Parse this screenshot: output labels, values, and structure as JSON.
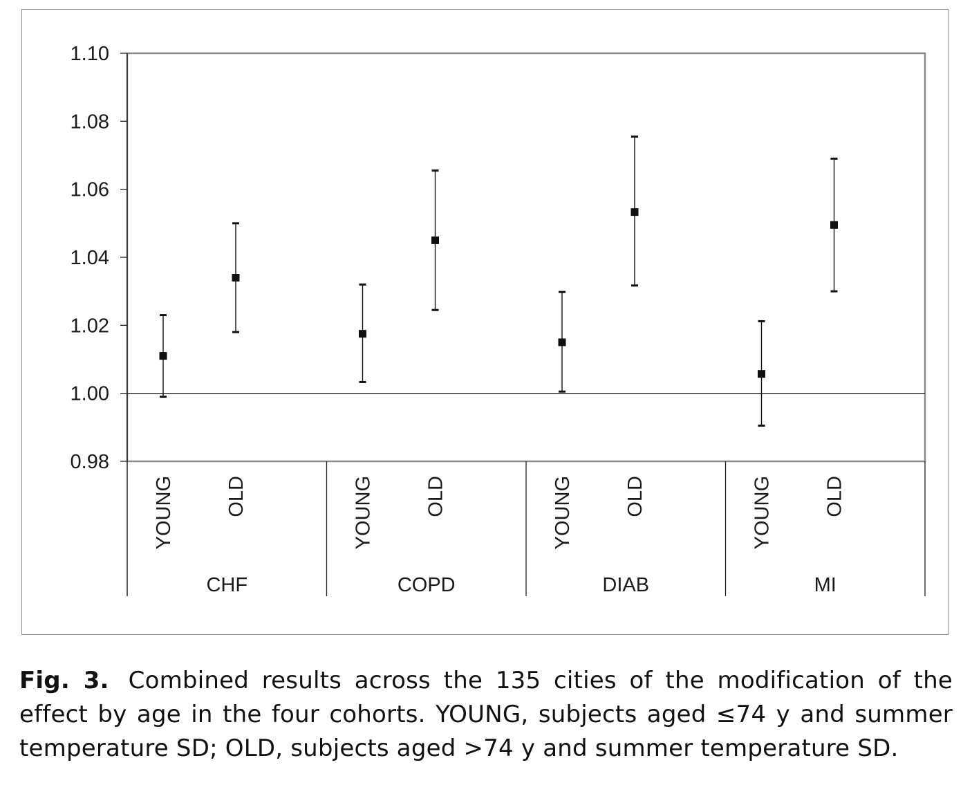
{
  "chart_data": {
    "type": "scatter",
    "subtype": "point-with-error-bars",
    "groups": [
      {
        "name": "CHF",
        "items": [
          {
            "category": "YOUNG",
            "estimate": 1.011,
            "lower": 0.999,
            "upper": 1.023
          },
          {
            "category": "OLD",
            "estimate": 1.034,
            "lower": 1.018,
            "upper": 1.05
          }
        ]
      },
      {
        "name": "COPD",
        "items": [
          {
            "category": "YOUNG",
            "estimate": 1.0175,
            "lower": 1.0033,
            "upper": 1.032
          },
          {
            "category": "OLD",
            "estimate": 1.045,
            "lower": 1.0245,
            "upper": 1.0655
          }
        ]
      },
      {
        "name": "DIAB",
        "items": [
          {
            "category": "YOUNG",
            "estimate": 1.015,
            "lower": 1.0005,
            "upper": 1.0298
          },
          {
            "category": "OLD",
            "estimate": 1.0533,
            "lower": 1.0317,
            "upper": 1.0755
          }
        ]
      },
      {
        "name": "MI",
        "items": [
          {
            "category": "YOUNG",
            "estimate": 1.0057,
            "lower": 0.9905,
            "upper": 1.0212
          },
          {
            "category": "OLD",
            "estimate": 1.0495,
            "lower": 1.03,
            "upper": 1.069
          }
        ]
      }
    ],
    "yticks": [
      "0.98",
      "1.00",
      "1.02",
      "1.04",
      "1.06",
      "1.08",
      "1.10"
    ],
    "ylim": [
      0.98,
      1.1
    ],
    "reference_line": 1.0,
    "grid": false,
    "marker_color": "#111111",
    "frame_color": "#8a8a8a"
  },
  "caption": {
    "label": "Fig. 3.",
    "text": "Combined results across the 135 cities of the modification of the effect by age in the four cohorts. YOUNG, subjects aged ≤74 y and summer temperature SD; OLD, subjects aged >74 y and summer temperature SD."
  }
}
